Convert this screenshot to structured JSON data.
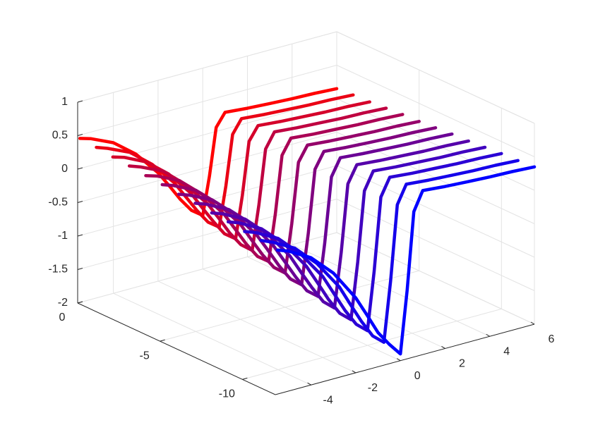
{
  "chart_data": {
    "type": "line3",
    "x": [
      -5.5,
      -5,
      -4,
      -3,
      -2,
      -1.5,
      -1,
      -0.5,
      0,
      0.3,
      0.6,
      1,
      2,
      3,
      4,
      5,
      6
    ],
    "series": [
      {
        "y": 0,
        "color": "#ff0000",
        "values": [
          0.45,
          0.4,
          0.25,
          -0.01,
          -0.38,
          -0.62,
          -0.87,
          -1.08,
          -1.2,
          -0.64,
          0.06,
          0.25,
          0.22,
          0.2,
          0.18,
          0.17,
          0.15
        ]
      },
      {
        "y": -1,
        "color": "#ea0015",
        "values": [
          0.43,
          0.37,
          0.22,
          -0.05,
          -0.42,
          -0.67,
          -0.92,
          -1.14,
          -1.26,
          -0.67,
          0.07,
          0.27,
          0.24,
          0.22,
          0.2,
          0.19,
          0.17
        ]
      },
      {
        "y": -2,
        "color": "#d5002a",
        "values": [
          0.4,
          0.35,
          0.19,
          -0.08,
          -0.46,
          -0.72,
          -0.97,
          -1.2,
          -1.32,
          -0.7,
          0.08,
          0.28,
          0.25,
          0.23,
          0.21,
          0.2,
          0.18
        ]
      },
      {
        "y": -3,
        "color": "#bf0040",
        "values": [
          0.38,
          0.32,
          0.17,
          -0.12,
          -0.5,
          -0.76,
          -1.03,
          -1.25,
          -1.38,
          -0.73,
          0.08,
          0.3,
          0.27,
          0.25,
          0.23,
          0.22,
          0.2
        ]
      },
      {
        "y": -4,
        "color": "#aa0055",
        "values": [
          0.35,
          0.3,
          0.14,
          -0.15,
          -0.54,
          -0.81,
          -1.08,
          -1.31,
          -1.43,
          -0.75,
          0.1,
          0.32,
          0.29,
          0.27,
          0.25,
          0.24,
          0.22
        ]
      },
      {
        "y": -5,
        "color": "#95006a",
        "values": [
          0.33,
          0.27,
          0.11,
          -0.18,
          -0.58,
          -0.86,
          -1.13,
          -1.36,
          -1.49,
          -0.78,
          0.11,
          0.33,
          0.3,
          0.28,
          0.26,
          0.25,
          0.23
        ]
      },
      {
        "y": -6,
        "color": "#80007f",
        "values": [
          0.3,
          0.24,
          0.08,
          -0.22,
          -0.63,
          -0.9,
          -1.18,
          -1.42,
          -1.55,
          -0.81,
          0.12,
          0.35,
          0.32,
          0.3,
          0.28,
          0.27,
          0.25
        ]
      },
      {
        "y": -7,
        "color": "#6a0095",
        "values": [
          0.28,
          0.22,
          0.05,
          -0.25,
          -0.67,
          -0.95,
          -1.23,
          -1.48,
          -1.61,
          -0.84,
          0.12,
          0.37,
          0.34,
          0.32,
          0.3,
          0.29,
          0.27
        ]
      },
      {
        "y": -8,
        "color": "#5500aa",
        "values": [
          0.25,
          0.19,
          0.02,
          -0.29,
          -0.71,
          -1.0,
          -1.28,
          -1.53,
          -1.67,
          -0.87,
          0.13,
          0.38,
          0.35,
          0.33,
          0.31,
          0.3,
          0.28
        ]
      },
      {
        "y": -9,
        "color": "#4000bf",
        "values": [
          0.23,
          0.17,
          -0.01,
          -0.32,
          -0.75,
          -1.04,
          -1.34,
          -1.59,
          -1.73,
          -0.9,
          0.14,
          0.4,
          0.37,
          0.35,
          0.33,
          0.32,
          0.3
        ]
      },
      {
        "y": -10,
        "color": "#2a00d5",
        "values": [
          0.2,
          0.14,
          -0.04,
          -0.36,
          -0.79,
          -1.09,
          -1.39,
          -1.64,
          -1.78,
          -0.92,
          0.16,
          0.42,
          0.39,
          0.37,
          0.35,
          0.34,
          0.32
        ]
      },
      {
        "y": -11,
        "color": "#1500ea",
        "values": [
          0.18,
          0.11,
          -0.07,
          -0.39,
          -0.83,
          -1.14,
          -1.44,
          -1.7,
          -1.84,
          -0.95,
          0.16,
          0.43,
          0.4,
          0.38,
          0.36,
          0.35,
          0.33
        ]
      },
      {
        "y": -12,
        "color": "#0000ff",
        "values": [
          0.15,
          0.09,
          -0.1,
          -0.42,
          -0.88,
          -1.18,
          -1.49,
          -1.71,
          -1.9,
          -0.98,
          0.17,
          0.45,
          0.42,
          0.4,
          0.38,
          0.37,
          0.35
        ]
      }
    ],
    "xlim": [
      -5.6,
      6
    ],
    "ylim": [
      -12,
      0
    ],
    "zlim": [
      -2,
      1
    ],
    "xticks": [
      -4,
      -2,
      0,
      2,
      4,
      6
    ],
    "yticks": [
      -10,
      -5,
      0
    ],
    "zticks": [
      -2,
      -1.5,
      -1,
      -0.5,
      0,
      0.5,
      1
    ],
    "grid": true
  }
}
